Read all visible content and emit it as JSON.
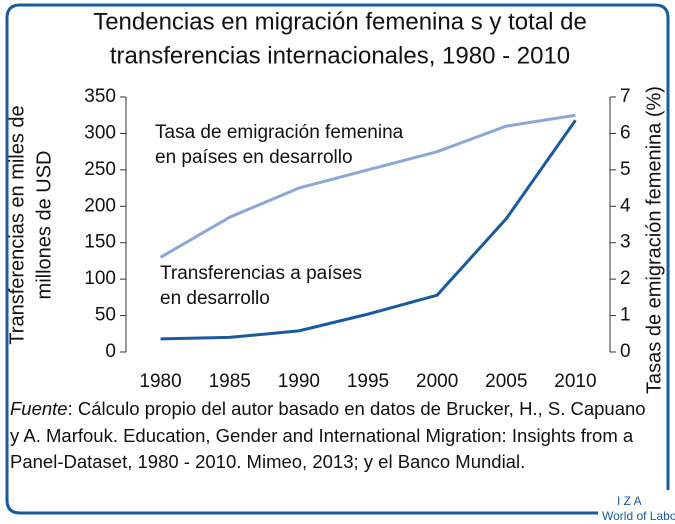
{
  "chart_data": {
    "type": "line",
    "title": [
      "Tendencias en migración femenina s y total de",
      "transferencias internacionales, 1980 - 2010"
    ],
    "y_label": [
      "Transferencias en miles de",
      "millones de USD"
    ],
    "y2_label": "Tasas de emigración femenina (%)",
    "x": [
      1980,
      1985,
      1990,
      1995,
      2000,
      2005,
      2010
    ],
    "xlim": [
      1977.5,
      2012.5
    ],
    "xticks": [
      1980,
      1985,
      1990,
      1995,
      2000,
      2005,
      2010
    ],
    "ylim": [
      0,
      350
    ],
    "yticks": [
      0,
      50,
      100,
      150,
      200,
      250,
      300,
      350
    ],
    "y2lim": [
      0,
      7
    ],
    "y2ticks": [
      0,
      1,
      2,
      3,
      4,
      5,
      6,
      7
    ],
    "series": [
      {
        "name": [
          "Tasa de emigración femenina",
          "en países en desarrollo"
        ],
        "color": "#8ca6d6",
        "axis": "y2",
        "values": [
          2.6,
          3.7,
          4.5,
          5.0,
          5.5,
          6.2,
          6.5
        ]
      },
      {
        "name": [
          "Transferencias a países",
          "en desarrollo"
        ],
        "color": "#1a5a9e",
        "values": [
          18,
          20,
          29,
          52,
          78,
          183,
          318
        ]
      }
    ],
    "source_label": "Fuente",
    "source_text": ": Cálculo propio del autor basado en datos de Brucker, H., S. Capuano y A. Marfouk. Education, Gender and International Migration: Insights from a Panel-Dataset, 1980 - 2010. Mimeo, 2013; y el Banco Mundial.",
    "logo": [
      "I Z A",
      "World of Labor"
    ]
  }
}
